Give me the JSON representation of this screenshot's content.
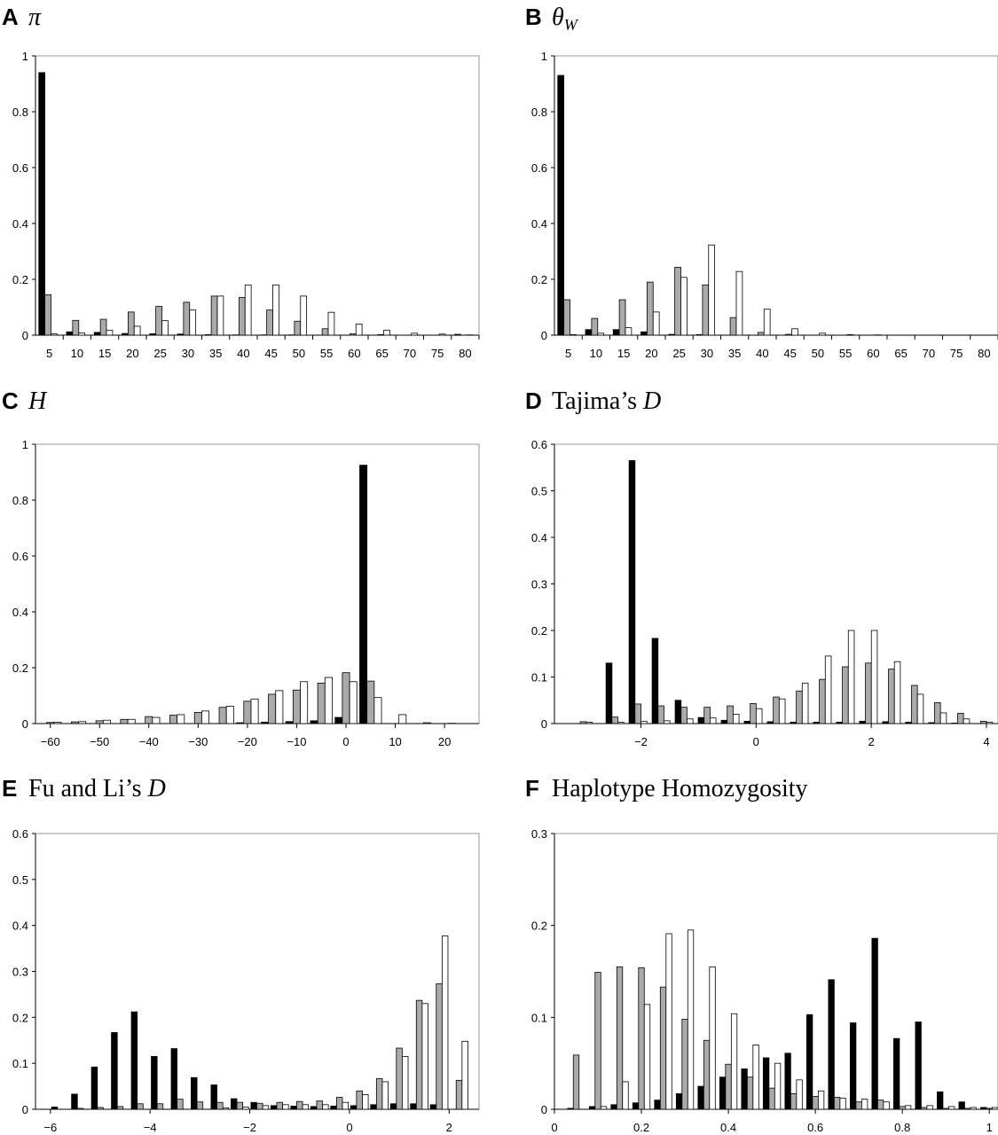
{
  "chart_data": [
    {
      "type": "bar",
      "letter": "A",
      "title": "π",
      "title_parts": [
        {
          "text": "π",
          "italic": true
        }
      ],
      "ylim": [
        0,
        1
      ],
      "yticks": [
        0,
        0.2,
        0.4,
        0.6,
        0.8,
        1
      ],
      "ytick_labels": [
        "0",
        "0.2",
        "0.4",
        "0.6",
        "0.8",
        "1"
      ],
      "categories": [
        "5",
        "10",
        "15",
        "20",
        "25",
        "30",
        "35",
        "40",
        "45",
        "50",
        "55",
        "60",
        "65",
        "70",
        "75",
        "80"
      ],
      "series": [
        {
          "color": "#000000",
          "values": [
            0.94,
            0.012,
            0.01,
            0.006,
            0.005,
            0.004,
            0.002,
            0.001,
            0.001,
            0.001,
            0.0,
            0.0,
            0.0,
            0.0,
            0.0,
            0.003
          ]
        },
        {
          "color": "#aaaaaa",
          "values": [
            0.145,
            0.053,
            0.057,
            0.083,
            0.103,
            0.118,
            0.14,
            0.135,
            0.09,
            0.05,
            0.023,
            0.005,
            0.002,
            0.0,
            0.0,
            0.0
          ]
        },
        {
          "color": "#ffffff",
          "values": [
            0.005,
            0.008,
            0.018,
            0.032,
            0.052,
            0.09,
            0.14,
            0.18,
            0.18,
            0.14,
            0.082,
            0.04,
            0.018,
            0.007,
            0.004,
            0.001
          ]
        }
      ]
    },
    {
      "type": "bar",
      "letter": "B",
      "title": "θW",
      "title_parts": [
        {
          "text": "θ",
          "italic": true
        },
        {
          "text": "W",
          "italic": true,
          "sub": true
        }
      ],
      "ylim": [
        0,
        1
      ],
      "yticks": [
        0,
        0.2,
        0.4,
        0.6,
        0.8,
        1
      ],
      "ytick_labels": [
        "0",
        "0.2",
        "0.4",
        "0.6",
        "0.8",
        "1"
      ],
      "categories": [
        "5",
        "10",
        "15",
        "20",
        "25",
        "30",
        "35",
        "40",
        "45",
        "50",
        "55",
        "60",
        "65",
        "70",
        "75",
        "80"
      ],
      "series": [
        {
          "color": "#000000",
          "values": [
            0.93,
            0.02,
            0.02,
            0.012,
            0.003,
            0.002,
            0.0,
            0.0,
            0.0,
            0.0,
            0.0,
            0.0,
            0.0,
            0.0,
            0.0,
            0.0
          ]
        },
        {
          "color": "#aaaaaa",
          "values": [
            0.127,
            0.06,
            0.127,
            0.19,
            0.243,
            0.18,
            0.063,
            0.01,
            0.003,
            0.0,
            0.0,
            0.0,
            0.0,
            0.0,
            0.0,
            0.0
          ]
        },
        {
          "color": "#ffffff",
          "values": [
            0.002,
            0.007,
            0.027,
            0.083,
            0.207,
            0.323,
            0.228,
            0.093,
            0.023,
            0.007,
            0.002,
            0.001,
            0.0,
            0.0,
            0.0,
            0.0
          ]
        }
      ]
    },
    {
      "type": "bar",
      "letter": "C",
      "title": "H",
      "title_parts": [
        {
          "text": "H",
          "italic": true
        }
      ],
      "ylim": [
        0,
        1
      ],
      "yticks": [
        0,
        0.2,
        0.4,
        0.6,
        0.8,
        1
      ],
      "ytick_labels": [
        "0",
        "0.2",
        "0.4",
        "0.6",
        "0.8",
        "1"
      ],
      "xlim": [
        -63,
        27
      ],
      "xticks": [
        -60,
        -50,
        -40,
        -30,
        -20,
        -10,
        0,
        10,
        20
      ],
      "xtick_labels": [
        "−60",
        "−50",
        "−40",
        "−30",
        "−20",
        "−10",
        "0",
        "10",
        "20"
      ],
      "bin_width": 5,
      "x": [
        -60,
        -55,
        -50,
        -45,
        -40,
        -35,
        -30,
        -25,
        -20,
        -15,
        -10,
        -5,
        0,
        5,
        10,
        15,
        20,
        25
      ],
      "series": [
        {
          "color": "#000000",
          "values": [
            0.0,
            0.0,
            0.0,
            0.0,
            0.0,
            0.0,
            0.0,
            0.0,
            0.003,
            0.005,
            0.007,
            0.01,
            0.022,
            0.925,
            0.0,
            0.0,
            0.0,
            0.0
          ]
        },
        {
          "color": "#aaaaaa",
          "values": [
            0.004,
            0.006,
            0.01,
            0.015,
            0.025,
            0.03,
            0.04,
            0.058,
            0.08,
            0.105,
            0.12,
            0.145,
            0.182,
            0.152,
            0.0,
            0.0,
            0.0,
            0.0
          ]
        },
        {
          "color": "#ffffff",
          "values": [
            0.005,
            0.007,
            0.012,
            0.015,
            0.022,
            0.032,
            0.045,
            0.062,
            0.088,
            0.118,
            0.15,
            0.165,
            0.15,
            0.093,
            0.032,
            0.003,
            0.001,
            0.0
          ]
        }
      ]
    },
    {
      "type": "bar",
      "letter": "D",
      "title": "Tajima's D",
      "title_parts": [
        {
          "text": "Tajima’s ",
          "italic": false
        },
        {
          "text": "D",
          "italic": true
        }
      ],
      "ylim": [
        0,
        0.6
      ],
      "yticks": [
        0,
        0.1,
        0.2,
        0.3,
        0.4,
        0.5,
        0.6
      ],
      "ytick_labels": [
        "0",
        "0.1",
        "0.2",
        "0.3",
        "0.4",
        "0.5",
        "0.6"
      ],
      "xlim": [
        -3.5,
        4.2
      ],
      "xticks": [
        -2,
        0,
        2,
        4
      ],
      "xtick_labels": [
        "−2",
        "0",
        "2",
        "4"
      ],
      "bin_width": 0.35,
      "x": [
        -3.0,
        -2.45,
        -2.05,
        -1.65,
        -1.25,
        -0.85,
        -0.45,
        -0.05,
        0.35,
        0.75,
        1.15,
        1.55,
        1.95,
        2.35,
        2.75,
        3.15,
        3.55,
        3.95
      ],
      "series": [
        {
          "color": "#000000",
          "values": [
            0.0,
            0.13,
            0.565,
            0.183,
            0.05,
            0.013,
            0.007,
            0.005,
            0.004,
            0.003,
            0.003,
            0.003,
            0.005,
            0.004,
            0.003,
            0.002,
            0.001,
            0.0
          ]
        },
        {
          "color": "#aaaaaa",
          "values": [
            0.004,
            0.014,
            0.042,
            0.038,
            0.035,
            0.035,
            0.038,
            0.043,
            0.057,
            0.07,
            0.095,
            0.122,
            0.13,
            0.117,
            0.082,
            0.045,
            0.022,
            0.005
          ]
        },
        {
          "color": "#ffffff",
          "values": [
            0.003,
            0.003,
            0.005,
            0.006,
            0.01,
            0.012,
            0.02,
            0.032,
            0.053,
            0.087,
            0.145,
            0.2,
            0.2,
            0.133,
            0.063,
            0.023,
            0.01,
            0.003
          ]
        }
      ]
    },
    {
      "type": "bar",
      "letter": "E",
      "title": "Fu and Li's D",
      "title_parts": [
        {
          "text": "Fu and Li’s ",
          "italic": false
        },
        {
          "text": "D",
          "italic": true
        }
      ],
      "ylim": [
        0,
        0.6
      ],
      "yticks": [
        0,
        0.1,
        0.2,
        0.3,
        0.4,
        0.5,
        0.6
      ],
      "ytick_labels": [
        "0",
        "0.1",
        "0.2",
        "0.3",
        "0.4",
        "0.5",
        "0.6"
      ],
      "xlim": [
        -6.3,
        2.6
      ],
      "xticks": [
        -6,
        -4,
        -2,
        0,
        2
      ],
      "xtick_labels": [
        "−6",
        "−4",
        "−2",
        "0",
        "2"
      ],
      "bin_width": 0.4,
      "x": [
        -5.8,
        -5.4,
        -5.0,
        -4.6,
        -4.2,
        -3.8,
        -3.4,
        -3.0,
        -2.6,
        -2.2,
        -1.8,
        -1.4,
        -1.0,
        -0.6,
        -0.2,
        0.2,
        0.6,
        1.0,
        1.4,
        1.8,
        2.2
      ],
      "series": [
        {
          "color": "#000000",
          "values": [
            0.005,
            0.033,
            0.092,
            0.167,
            0.212,
            0.115,
            0.132,
            0.069,
            0.053,
            0.023,
            0.015,
            0.008,
            0.007,
            0.006,
            0.007,
            0.008,
            0.01,
            0.012,
            0.012,
            0.01,
            0.0
          ]
        },
        {
          "color": "#aaaaaa",
          "values": [
            0.0,
            0.002,
            0.004,
            0.006,
            0.012,
            0.012,
            0.022,
            0.016,
            0.015,
            0.015,
            0.013,
            0.015,
            0.017,
            0.018,
            0.026,
            0.04,
            0.067,
            0.133,
            0.237,
            0.273,
            0.063
          ]
        },
        {
          "color": "#ffffff",
          "values": [
            0.0,
            0.0,
            0.0,
            0.0,
            0.0,
            0.0,
            0.0,
            0.0,
            0.003,
            0.005,
            0.008,
            0.01,
            0.01,
            0.01,
            0.015,
            0.032,
            0.06,
            0.115,
            0.23,
            0.377,
            0.148
          ]
        }
      ]
    },
    {
      "type": "bar",
      "letter": "F",
      "title": "Haplotype Homozygosity",
      "title_parts": [
        {
          "text": "Haplotype Homozygosity",
          "italic": false
        }
      ],
      "ylim": [
        0,
        0.3
      ],
      "yticks": [
        0,
        0.1,
        0.2,
        0.3
      ],
      "ytick_labels": [
        "0",
        "0.1",
        "0.2",
        "0.3"
      ],
      "xlim": [
        0,
        1.02
      ],
      "xticks": [
        0,
        0.2,
        0.4,
        0.6,
        0.8,
        1
      ],
      "xtick_labels": [
        "0",
        "0.2",
        "0.4",
        "0.6",
        "0.8",
        "1"
      ],
      "bin_width": 0.045,
      "x": [
        0.05,
        0.1,
        0.15,
        0.2,
        0.25,
        0.3,
        0.35,
        0.4,
        0.45,
        0.5,
        0.55,
        0.6,
        0.65,
        0.7,
        0.75,
        0.8,
        0.85,
        0.9,
        0.95,
        1.0
      ],
      "series": [
        {
          "color": "#000000",
          "values": [
            0.001,
            0.003,
            0.005,
            0.007,
            0.01,
            0.017,
            0.025,
            0.035,
            0.044,
            0.056,
            0.061,
            0.103,
            0.141,
            0.094,
            0.186,
            0.077,
            0.095,
            0.019,
            0.008,
            0.002
          ]
        },
        {
          "color": "#aaaaaa",
          "values": [
            0.059,
            0.149,
            0.155,
            0.154,
            0.133,
            0.098,
            0.075,
            0.049,
            0.035,
            0.023,
            0.017,
            0.014,
            0.013,
            0.008,
            0.01,
            0.003,
            0.002,
            0.001,
            0.001,
            0.001
          ]
        },
        {
          "color": "#ffffff",
          "values": [
            0.0,
            0.003,
            0.03,
            0.114,
            0.191,
            0.195,
            0.155,
            0.104,
            0.07,
            0.05,
            0.032,
            0.02,
            0.012,
            0.011,
            0.008,
            0.004,
            0.004,
            0.003,
            0.002,
            0.002
          ]
        }
      ]
    }
  ]
}
